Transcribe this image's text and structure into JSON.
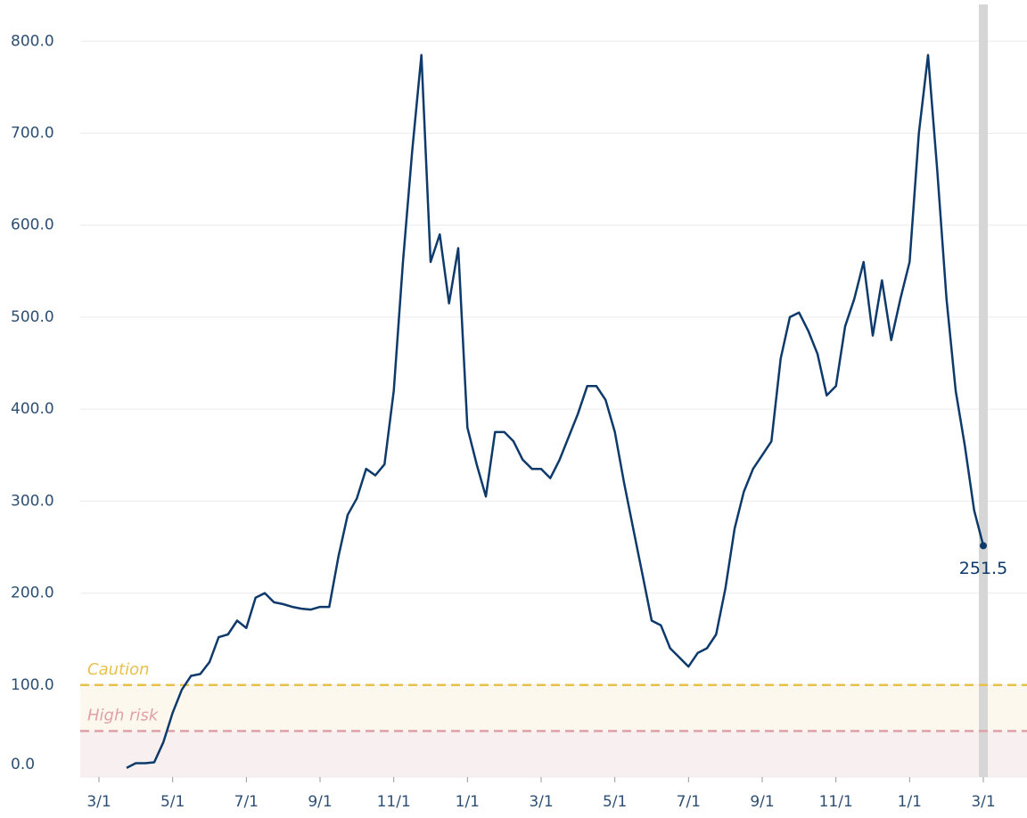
{
  "chart_data": {
    "type": "line",
    "categories": [
      "3/1",
      null,
      null,
      null,
      null,
      null,
      null,
      null,
      "5/1",
      null,
      null,
      null,
      null,
      null,
      null,
      null,
      "7/1",
      null,
      null,
      null,
      null,
      null,
      null,
      null,
      "9/1",
      null,
      null,
      null,
      null,
      null,
      null,
      null,
      "11/1",
      null,
      null,
      null,
      null,
      null,
      null,
      null,
      "1/1",
      null,
      null,
      null,
      null,
      null,
      null,
      null,
      "3/1",
      null,
      null,
      null,
      null,
      null,
      null,
      null,
      "5/1",
      null,
      null,
      null,
      null,
      null,
      null,
      null,
      "7/1",
      null,
      null,
      null,
      null,
      null,
      null,
      null,
      "9/1",
      null,
      null,
      null,
      null,
      null,
      null,
      null,
      "11/1",
      null,
      null,
      null,
      null,
      null,
      null,
      null,
      "1/1",
      null,
      null,
      null,
      null,
      null,
      null,
      null,
      "3/1"
    ],
    "series": [
      {
        "color": "#0d3a6b",
        "values": [
          null,
          null,
          null,
          10,
          15,
          15,
          16,
          38,
          70,
          95,
          110,
          112,
          125,
          152,
          155,
          170,
          162,
          195,
          200,
          190,
          188,
          185,
          183,
          182,
          185,
          185,
          240,
          285,
          303,
          335,
          328,
          340,
          420,
          560,
          680,
          785,
          560,
          590,
          515,
          575,
          380,
          340,
          305,
          375,
          375,
          365,
          345,
          335,
          335,
          325,
          345,
          370,
          395,
          425,
          425,
          410,
          375,
          320,
          270,
          220,
          170,
          165,
          140,
          130,
          120,
          135,
          140,
          155,
          205,
          270,
          310,
          335,
          350,
          365,
          455,
          500,
          505,
          485,
          460,
          415,
          425,
          490,
          520,
          560,
          480,
          540,
          475,
          520,
          560,
          700,
          785,
          660,
          520,
          420,
          360,
          290,
          251.5
        ]
      }
    ],
    "ylim": [
      0,
      840
    ],
    "yticks": [
      {
        "value": 0,
        "label": "0.0"
      },
      {
        "value": 100,
        "label": "100.0"
      },
      {
        "value": 200,
        "label": "200.0"
      },
      {
        "value": 300,
        "label": "300.0"
      },
      {
        "value": 400,
        "label": "400.0"
      },
      {
        "value": 500,
        "label": "500.0"
      },
      {
        "value": 600,
        "label": "600.0"
      },
      {
        "value": 700,
        "label": "700.0"
      },
      {
        "value": 800,
        "label": "800.0"
      }
    ],
    "grid": true,
    "thresholds": [
      {
        "label": "Caution",
        "value": 100,
        "color": "#e8c14b",
        "band_color": "#fdf8ee"
      },
      {
        "label": "High risk",
        "value": 50,
        "color": "#e0a0a8",
        "band_color": "#f8f0f0"
      }
    ]
  }
}
